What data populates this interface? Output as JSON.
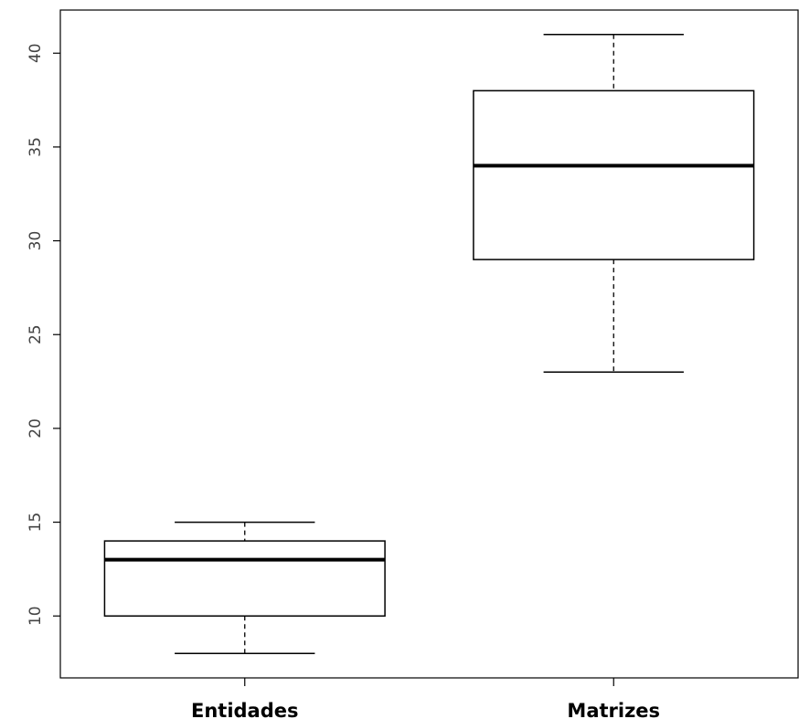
{
  "chart_data": {
    "type": "boxplot",
    "categories": [
      "Entidades",
      "Matrizes"
    ],
    "boxes": [
      {
        "category": "Entidades",
        "min": 8,
        "q1": 10,
        "median": 13,
        "q3": 14,
        "max": 15
      },
      {
        "category": "Matrizes",
        "min": 23,
        "q1": 29,
        "median": 34,
        "q3": 38,
        "max": 41
      }
    ],
    "y_ticks": [
      10,
      15,
      20,
      25,
      30,
      35,
      40
    ],
    "ylim": [
      6.7,
      42.3
    ],
    "title": "",
    "xlabel": "",
    "ylabel": "",
    "grid": false
  }
}
